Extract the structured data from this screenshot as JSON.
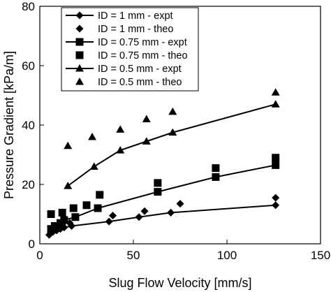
{
  "chart_data": {
    "type": "scatter",
    "title": "",
    "xlabel": "Slug Flow Velocity [mm/s]",
    "ylabel": "Pressure Gradient [kPa/m]",
    "xlim": [
      0,
      150
    ],
    "ylim": [
      0,
      80
    ],
    "xticks": [
      "0",
      "50",
      "100",
      "150"
    ],
    "yticks": [
      "0",
      "20",
      "40",
      "60",
      "80"
    ],
    "grid": false,
    "legend_position": "top-left",
    "series": [
      {
        "name": "ID = 1 mm - expt",
        "marker": "diamond",
        "line": true,
        "x": [
          5,
          7,
          9,
          11,
          13,
          17,
          37,
          53,
          70,
          126
        ],
        "y": [
          3,
          4,
          4.5,
          5,
          5.5,
          6,
          7.5,
          9,
          10.5,
          13
        ]
      },
      {
        "name": "ID = 1 mm - theo",
        "marker": "diamond",
        "line": false,
        "x": [
          6,
          8,
          10,
          12,
          16,
          39,
          56,
          75,
          126
        ],
        "y": [
          4,
          5,
          6,
          6.5,
          7,
          9.5,
          11,
          13.5,
          15.5
        ]
      },
      {
        "name": "ID = 0.75 mm - expt",
        "marker": "square",
        "line": true,
        "x": [
          6,
          8,
          11,
          13,
          19,
          31,
          63,
          94,
          126
        ],
        "y": [
          5,
          6,
          7,
          8,
          9,
          12,
          17.5,
          22.5,
          26.5
        ]
      },
      {
        "name": "ID = 0.75 mm - theo",
        "marker": "square",
        "line": false,
        "x": [
          6,
          12,
          18,
          25,
          32,
          63,
          94,
          126
        ],
        "y": [
          10,
          10.5,
          12,
          13,
          16.5,
          20.5,
          25.5,
          29
        ]
      },
      {
        "name": "ID = 0.5 mm - expt",
        "marker": "triangle",
        "line": true,
        "x": [
          15,
          29,
          43,
          57,
          71,
          126
        ],
        "y": [
          19.5,
          26,
          31.5,
          34.5,
          37.5,
          47
        ]
      },
      {
        "name": "ID = 0.5 mm - theo",
        "marker": "triangle",
        "line": false,
        "x": [
          15,
          28,
          43,
          57,
          71,
          126
        ],
        "y": [
          33,
          36,
          38.5,
          42,
          44.5,
          51
        ]
      }
    ]
  }
}
